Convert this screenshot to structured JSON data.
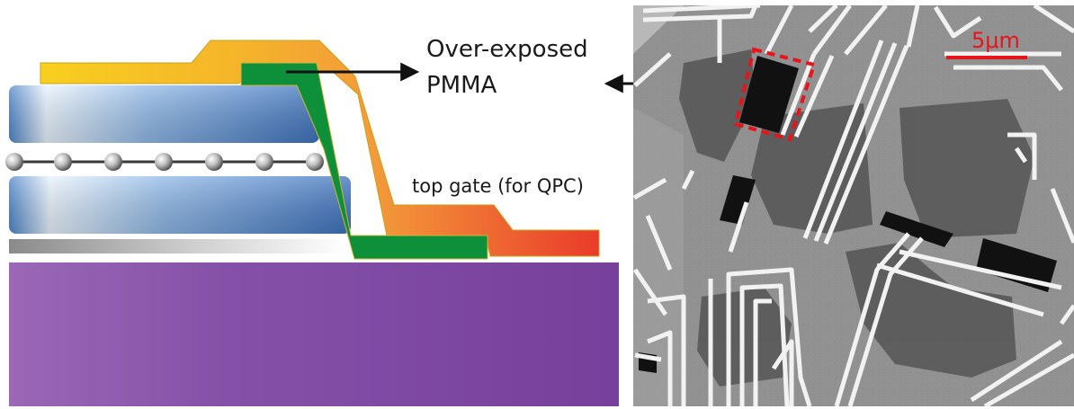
{
  "schematic": {
    "label_line1": "Over-exposed",
    "label_line2": "PMMA",
    "gate_label": "top gate (for QPC)"
  },
  "micrograph": {
    "scale_bar_text": "5μm",
    "scale_bar_color": "#e8141a",
    "highlight_box_color": "#e8141a"
  },
  "colors": {
    "substrate": "#7e44a0",
    "hbn_blue": "#3f79c4",
    "pmma_green": "#0e8f3a",
    "top_gate_yellow": "#f7c21b",
    "top_gate_red": "#ea3b2a"
  }
}
